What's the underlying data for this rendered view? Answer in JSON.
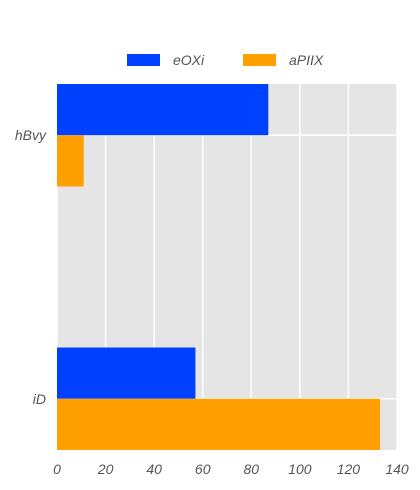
{
  "chart_data": {
    "type": "bar",
    "orientation": "horizontal",
    "categories": [
      "hBvy",
      "iD"
    ],
    "series": [
      {
        "name": "eOXi",
        "values": [
          87,
          57
        ],
        "color": "#0040ff"
      },
      {
        "name": "aPIIX",
        "values": [
          11,
          133
        ],
        "color": "#ffa000"
      }
    ],
    "xlim": [
      0,
      140
    ],
    "xticks": [
      "0",
      "20",
      "40",
      "60",
      "80",
      "100",
      "120",
      "140"
    ],
    "grid": true,
    "legend": "top-center",
    "title": "",
    "xlabel": "",
    "ylabel": ""
  }
}
